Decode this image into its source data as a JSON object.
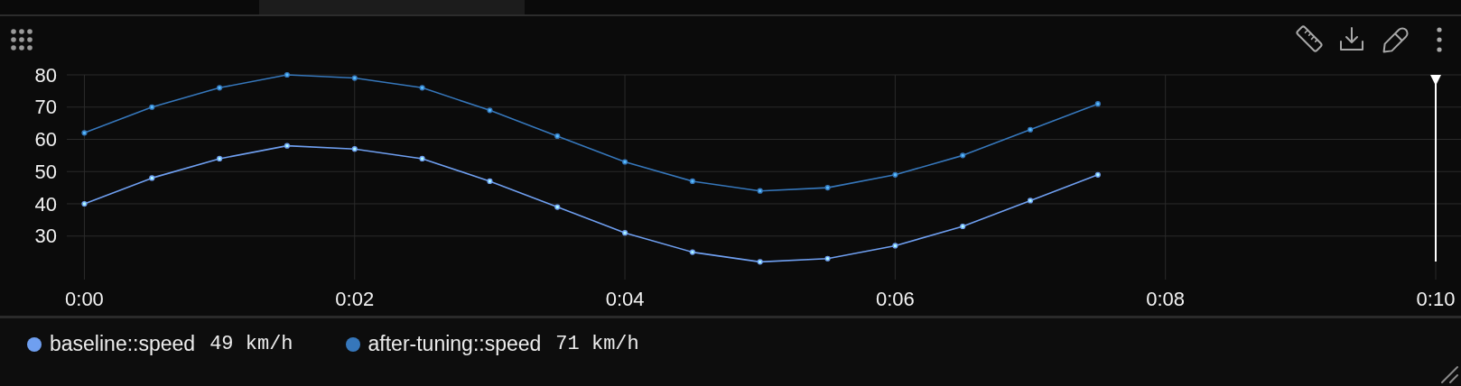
{
  "chart_data": {
    "type": "line",
    "x": [
      0,
      0.5,
      1,
      1.5,
      2,
      2.5,
      3,
      3.5,
      4,
      4.5,
      5,
      5.5,
      6,
      6.5,
      7,
      7.5
    ],
    "series": [
      {
        "name": "baseline::speed",
        "color": "#6f9ff0",
        "values": [
          40,
          48,
          54,
          58,
          57,
          54,
          47,
          39,
          31,
          25,
          22,
          23,
          27,
          33,
          41,
          49
        ]
      },
      {
        "name": "after-tuning::speed",
        "color": "#3677bb",
        "values": [
          62,
          70,
          76,
          80,
          79,
          76,
          69,
          61,
          53,
          47,
          44,
          45,
          49,
          55,
          63,
          71
        ]
      }
    ],
    "xlim": [
      -0.13,
      10
    ],
    "xticks": [
      {
        "value": 0,
        "label": "0:00"
      },
      {
        "value": 2,
        "label": "0:02"
      },
      {
        "value": 4,
        "label": "0:04"
      },
      {
        "value": 6,
        "label": "0:06"
      },
      {
        "value": 8,
        "label": "0:08"
      },
      {
        "value": 10,
        "label": "0:10"
      }
    ],
    "ylim": [
      16.5,
      80
    ],
    "yticks": [
      30,
      40,
      50,
      60,
      70,
      80
    ],
    "grid": true,
    "legend": "bottom",
    "marker": "circle",
    "line_style": "solid",
    "annotations": [
      "49 km/h",
      "71 km/h"
    ],
    "ref_lines": [
      {
        "axis": "x",
        "value": 10,
        "color": "#ffffff"
      }
    ]
  }
}
